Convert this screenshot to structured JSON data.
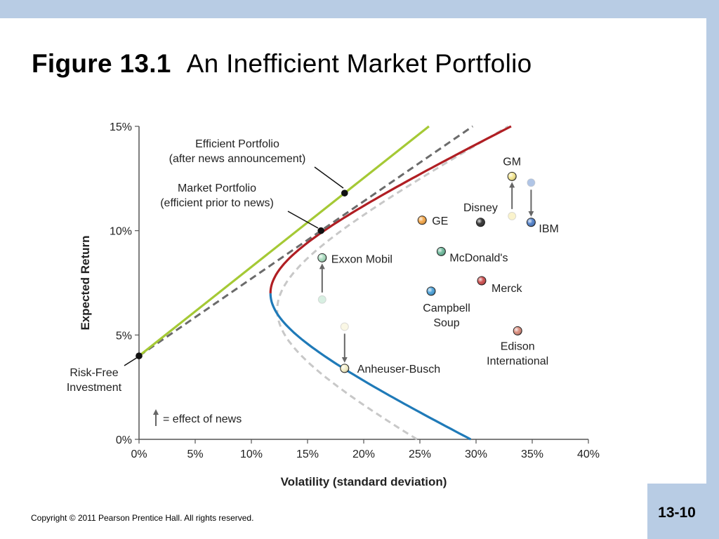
{
  "slide": {
    "title_bold": "Figure 13.1",
    "title_rest": "An Inefficient Market Portfolio",
    "copyright": "Copyright © 2011 Pearson Prentice Hall. All rights reserved.",
    "slide_number": "13-10"
  },
  "chart_data": {
    "type": "scatter",
    "xlabel": "Volatility (standard deviation)",
    "ylabel": "Expected Return",
    "xlim": [
      0,
      40
    ],
    "ylim": [
      0,
      15
    ],
    "x_ticks": [
      "0%",
      "5%",
      "10%",
      "15%",
      "20%",
      "25%",
      "30%",
      "35%",
      "40%"
    ],
    "y_ticks": [
      "0%",
      "5%",
      "10%",
      "15%"
    ],
    "legend_note": "= effect of news",
    "annotations": {
      "efficient_after_1": "Efficient Portfolio",
      "efficient_after_2": "(after news announcement)",
      "market_1": "Market Portfolio",
      "market_2": "(efficient prior to news)",
      "risk_free_1": "Risk-Free",
      "risk_free_2": "Investment"
    },
    "points": [
      {
        "label": "GM",
        "x": 33.2,
        "y": 12.6,
        "color": "#f3e58e",
        "prior": {
          "x": 33.2,
          "y": 10.7
        }
      },
      {
        "label": "IBM",
        "x": 34.9,
        "y": 10.4,
        "color": "#4f7fc8",
        "prior": {
          "x": 34.9,
          "y": 12.3
        }
      },
      {
        "label": "GE",
        "x": 25.2,
        "y": 10.5,
        "color": "#f2a547"
      },
      {
        "label": "Disney",
        "x": 30.4,
        "y": 10.4,
        "color": "#333333"
      },
      {
        "label": "McDonald's",
        "x": 26.9,
        "y": 9.0,
        "color": "#6cb89a"
      },
      {
        "label": "Exxon Mobil",
        "x": 16.3,
        "y": 8.7,
        "color": "#a9dcbf",
        "prior": {
          "x": 16.3,
          "y": 6.7
        }
      },
      {
        "label": "Merck",
        "x": 30.5,
        "y": 7.6,
        "color": "#cc4d4d"
      },
      {
        "label": "Campbell Soup",
        "x": 26.0,
        "y": 7.1,
        "color": "#4aa0d8"
      },
      {
        "label": "Edison International",
        "x": 33.7,
        "y": 5.2,
        "color": "#d88a7a"
      },
      {
        "label": "Anheuser-Busch",
        "x": 18.3,
        "y": 3.4,
        "color": "#f3eec6",
        "prior": {
          "x": 18.3,
          "y": 5.4
        }
      }
    ],
    "portfolios": {
      "risk_free": {
        "x": 0,
        "y": 4.0
      },
      "market": {
        "x": 16.2,
        "y": 10.0
      },
      "efficient_after": {
        "x": 18.3,
        "y": 11.8
      }
    },
    "series": [
      {
        "kind": "frontier_after",
        "color": "#b01e23"
      },
      {
        "kind": "frontier_lower",
        "color": "#1f7ab8"
      },
      {
        "kind": "frontier_prior",
        "color": "#c8c8c8"
      },
      {
        "kind": "cml_after",
        "color": "#a5c935"
      },
      {
        "kind": "cml_prior",
        "color": "#6b6b6b"
      }
    ]
  }
}
